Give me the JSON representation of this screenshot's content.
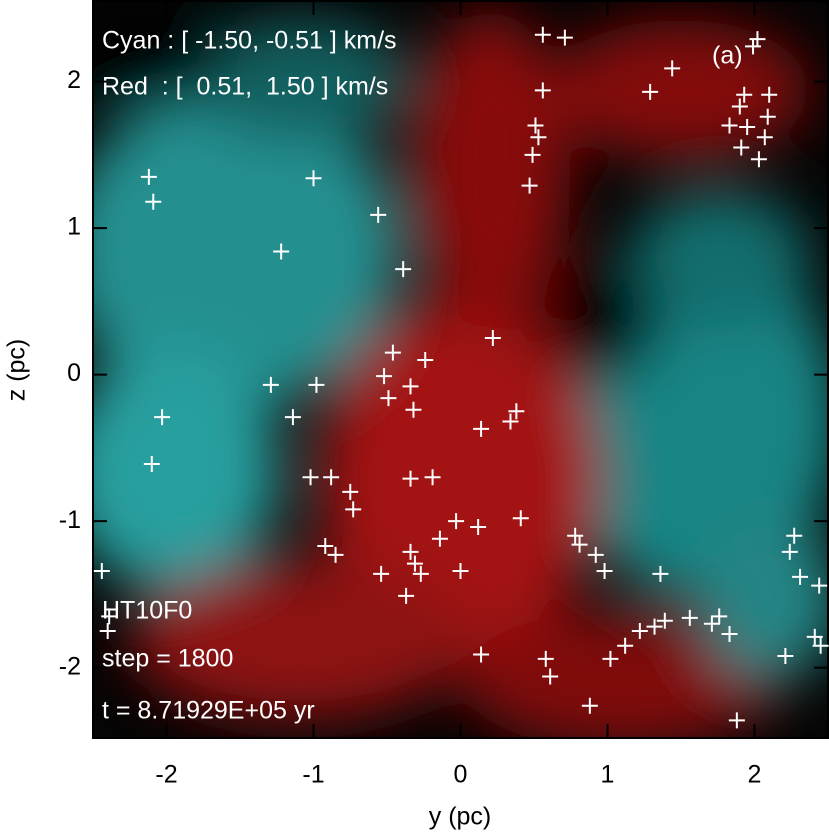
{
  "chart_data": {
    "type": "scatter",
    "xlabel": "y (pc)",
    "ylabel": "z (pc)",
    "annotations": [
      "Cyan : [ -1.50, -0.51 ] km/s",
      "Red  : [  0.51,  1.50 ] km/s",
      "(a)",
      "HT10F0",
      "step = 1800",
      "t = 8.71929E+05 yr"
    ],
    "xlim": [
      -2.5,
      2.5
    ],
    "ylim": [
      -2.48,
      2.55
    ],
    "xticks": [
      -2,
      -1,
      0,
      1,
      2
    ],
    "yticks": [
      -2,
      -1,
      0,
      1,
      2
    ],
    "color": "#ffffff",
    "x": [
      0.56,
      0.71,
      2.02,
      1.99,
      1.44,
      1.29,
      0.56,
      1.93,
      2.1,
      1.9,
      2.09,
      1.83,
      1.95,
      0.51,
      0.53,
      0.49,
      2.07,
      1.91,
      2.03,
      0.47,
      -2.12,
      -2.09,
      -1.0,
      -0.56,
      -1.22,
      -0.39,
      0.22,
      -0.46,
      -0.24,
      -1.29,
      -0.98,
      -0.52,
      -0.34,
      -0.49,
      -0.32,
      -2.03,
      -1.14,
      0.38,
      0.34,
      0.14,
      -2.1,
      -1.02,
      -0.88,
      -0.34,
      -0.19,
      -0.75,
      -0.73,
      0.41,
      -0.03,
      0.12,
      -0.14,
      0.78,
      0.81,
      -0.92,
      -0.85,
      -0.34,
      -0.31,
      -0.54,
      -0.27,
      0.0,
      -0.37,
      0.98,
      0.92,
      1.36,
      2.27,
      2.24,
      2.44,
      2.31,
      0.14,
      0.58,
      0.61,
      1.02,
      1.12,
      1.22,
      1.32,
      1.39,
      1.56,
      1.71,
      1.83,
      1.76,
      2.41,
      2.21,
      2.45,
      -2.44,
      -2.39,
      -2.4,
      0.88,
      1.88
    ],
    "values": [
      2.32,
      2.3,
      2.29,
      2.24,
      2.09,
      1.93,
      1.94,
      1.91,
      1.91,
      1.83,
      1.76,
      1.7,
      1.69,
      1.7,
      1.62,
      1.5,
      1.62,
      1.55,
      1.47,
      1.29,
      1.35,
      1.18,
      1.34,
      1.09,
      0.84,
      0.72,
      0.25,
      0.15,
      0.1,
      -0.07,
      -0.07,
      -0.01,
      -0.08,
      -0.16,
      -0.24,
      -0.29,
      -0.29,
      -0.25,
      -0.32,
      -0.37,
      -0.61,
      -0.7,
      -0.7,
      -0.71,
      -0.7,
      -0.8,
      -0.92,
      -0.98,
      -1.0,
      -1.04,
      -1.12,
      -1.1,
      -1.16,
      -1.17,
      -1.23,
      -1.21,
      -1.29,
      -1.36,
      -1.36,
      -1.34,
      -1.51,
      -1.34,
      -1.23,
      -1.36,
      -1.1,
      -1.21,
      -1.44,
      -1.38,
      -1.91,
      -1.94,
      -2.06,
      -1.94,
      -1.85,
      -1.75,
      -1.72,
      -1.68,
      -1.66,
      -1.7,
      -1.77,
      -1.65,
      -1.79,
      -1.92,
      -1.85,
      -1.34,
      -1.65,
      -1.75,
      -2.26,
      -2.36
    ]
  }
}
